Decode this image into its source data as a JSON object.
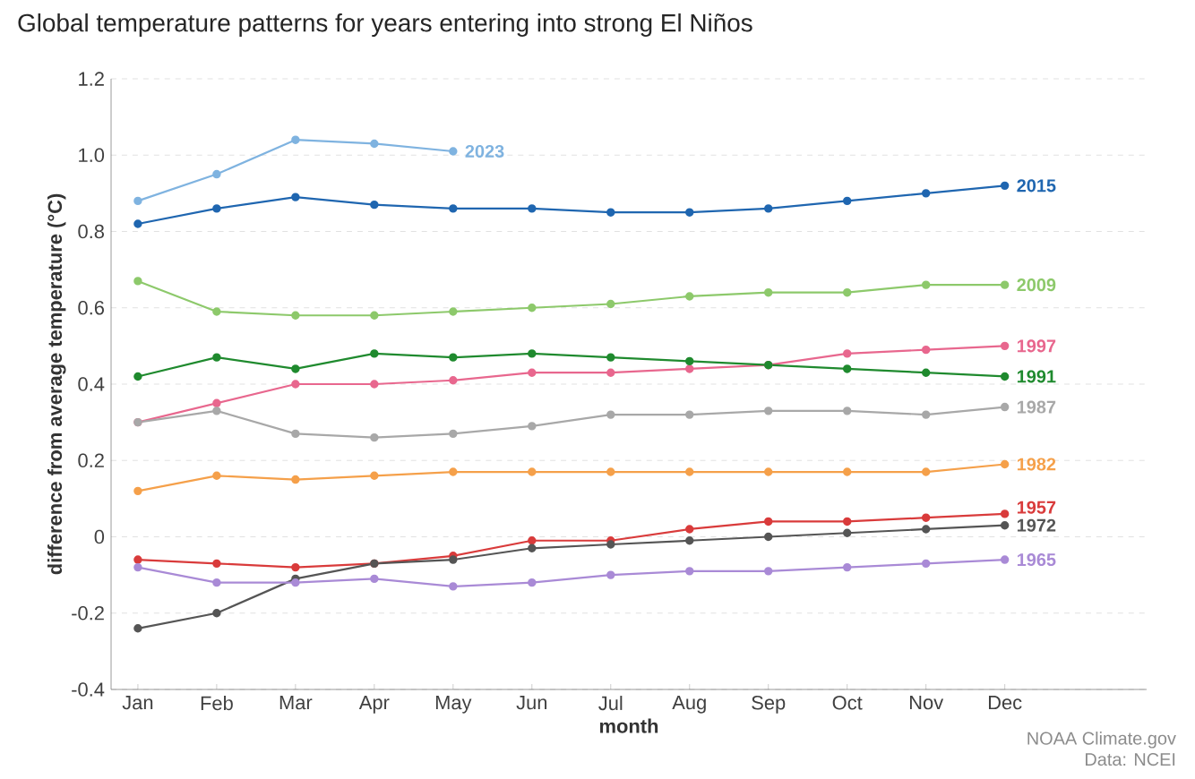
{
  "chart_data": {
    "type": "line",
    "title": "Global temperature patterns for years entering into strong El Niños",
    "xlabel": "month",
    "ylabel": "difference from average temperature (°C)",
    "categories": [
      "Jan",
      "Feb",
      "Mar",
      "Apr",
      "May",
      "Jun",
      "Jul",
      "Aug",
      "Sep",
      "Oct",
      "Nov",
      "Dec"
    ],
    "ylim": [
      -0.4,
      1.2
    ],
    "yticks": [
      1.2,
      {
        "value": 1.0,
        "label": "1.0"
      },
      0.8,
      0.6,
      0.4,
      0.2,
      0,
      -0.2,
      -0.4
    ],
    "grid": "y",
    "legend": false,
    "marker": "circle",
    "line_style": "solid",
    "series": [
      {
        "name": "2023",
        "color": "#7fb3e0",
        "values": [
          0.88,
          0.95,
          1.04,
          1.03,
          1.01,
          null,
          null,
          null,
          null,
          null,
          null,
          null
        ]
      },
      {
        "name": "2015",
        "color": "#1f66b0",
        "values": [
          0.82,
          0.86,
          0.89,
          0.87,
          0.86,
          0.86,
          0.85,
          0.85,
          0.86,
          0.88,
          0.9,
          0.92
        ]
      },
      {
        "name": "2009",
        "color": "#8dc96b",
        "values": [
          0.67,
          0.59,
          0.58,
          0.58,
          0.59,
          0.6,
          0.61,
          0.63,
          0.64,
          0.64,
          0.66,
          0.66
        ]
      },
      {
        "name": "1997",
        "color": "#e8678e",
        "values": [
          0.3,
          0.35,
          0.4,
          0.4,
          0.41,
          0.43,
          0.43,
          0.44,
          0.45,
          0.48,
          0.49,
          0.5
        ]
      },
      {
        "name": "1991",
        "color": "#1f8a2e",
        "values": [
          0.42,
          0.47,
          0.44,
          0.48,
          0.47,
          0.48,
          0.47,
          0.46,
          0.45,
          0.44,
          0.43,
          0.42
        ]
      },
      {
        "name": "1987",
        "color": "#a8a8a8",
        "values": [
          0.3,
          0.33,
          0.27,
          0.26,
          0.27,
          0.29,
          0.32,
          0.32,
          0.33,
          0.33,
          0.32,
          0.34
        ]
      },
      {
        "name": "1982",
        "color": "#f5a04a",
        "values": [
          0.12,
          0.16,
          0.15,
          0.16,
          0.17,
          0.17,
          0.17,
          0.17,
          0.17,
          0.17,
          0.17,
          0.19
        ]
      },
      {
        "name": "1957",
        "color": "#d93b3b",
        "values": [
          -0.06,
          -0.07,
          -0.08,
          -0.07,
          -0.05,
          -0.01,
          -0.01,
          0.02,
          0.04,
          0.04,
          0.05,
          0.06
        ]
      },
      {
        "name": "1972",
        "color": "#555555",
        "values": [
          -0.24,
          -0.2,
          -0.11,
          -0.07,
          -0.06,
          -0.03,
          -0.02,
          -0.01,
          0.0,
          0.01,
          0.02,
          0.03
        ]
      },
      {
        "name": "1965",
        "color": "#a98ad6",
        "values": [
          -0.08,
          -0.12,
          -0.12,
          -0.11,
          -0.13,
          -0.12,
          -0.1,
          -0.09,
          -0.09,
          -0.08,
          -0.07,
          -0.06
        ]
      }
    ],
    "annotations": [
      "NOAA Climate.gov",
      "Data: NCEI"
    ]
  }
}
